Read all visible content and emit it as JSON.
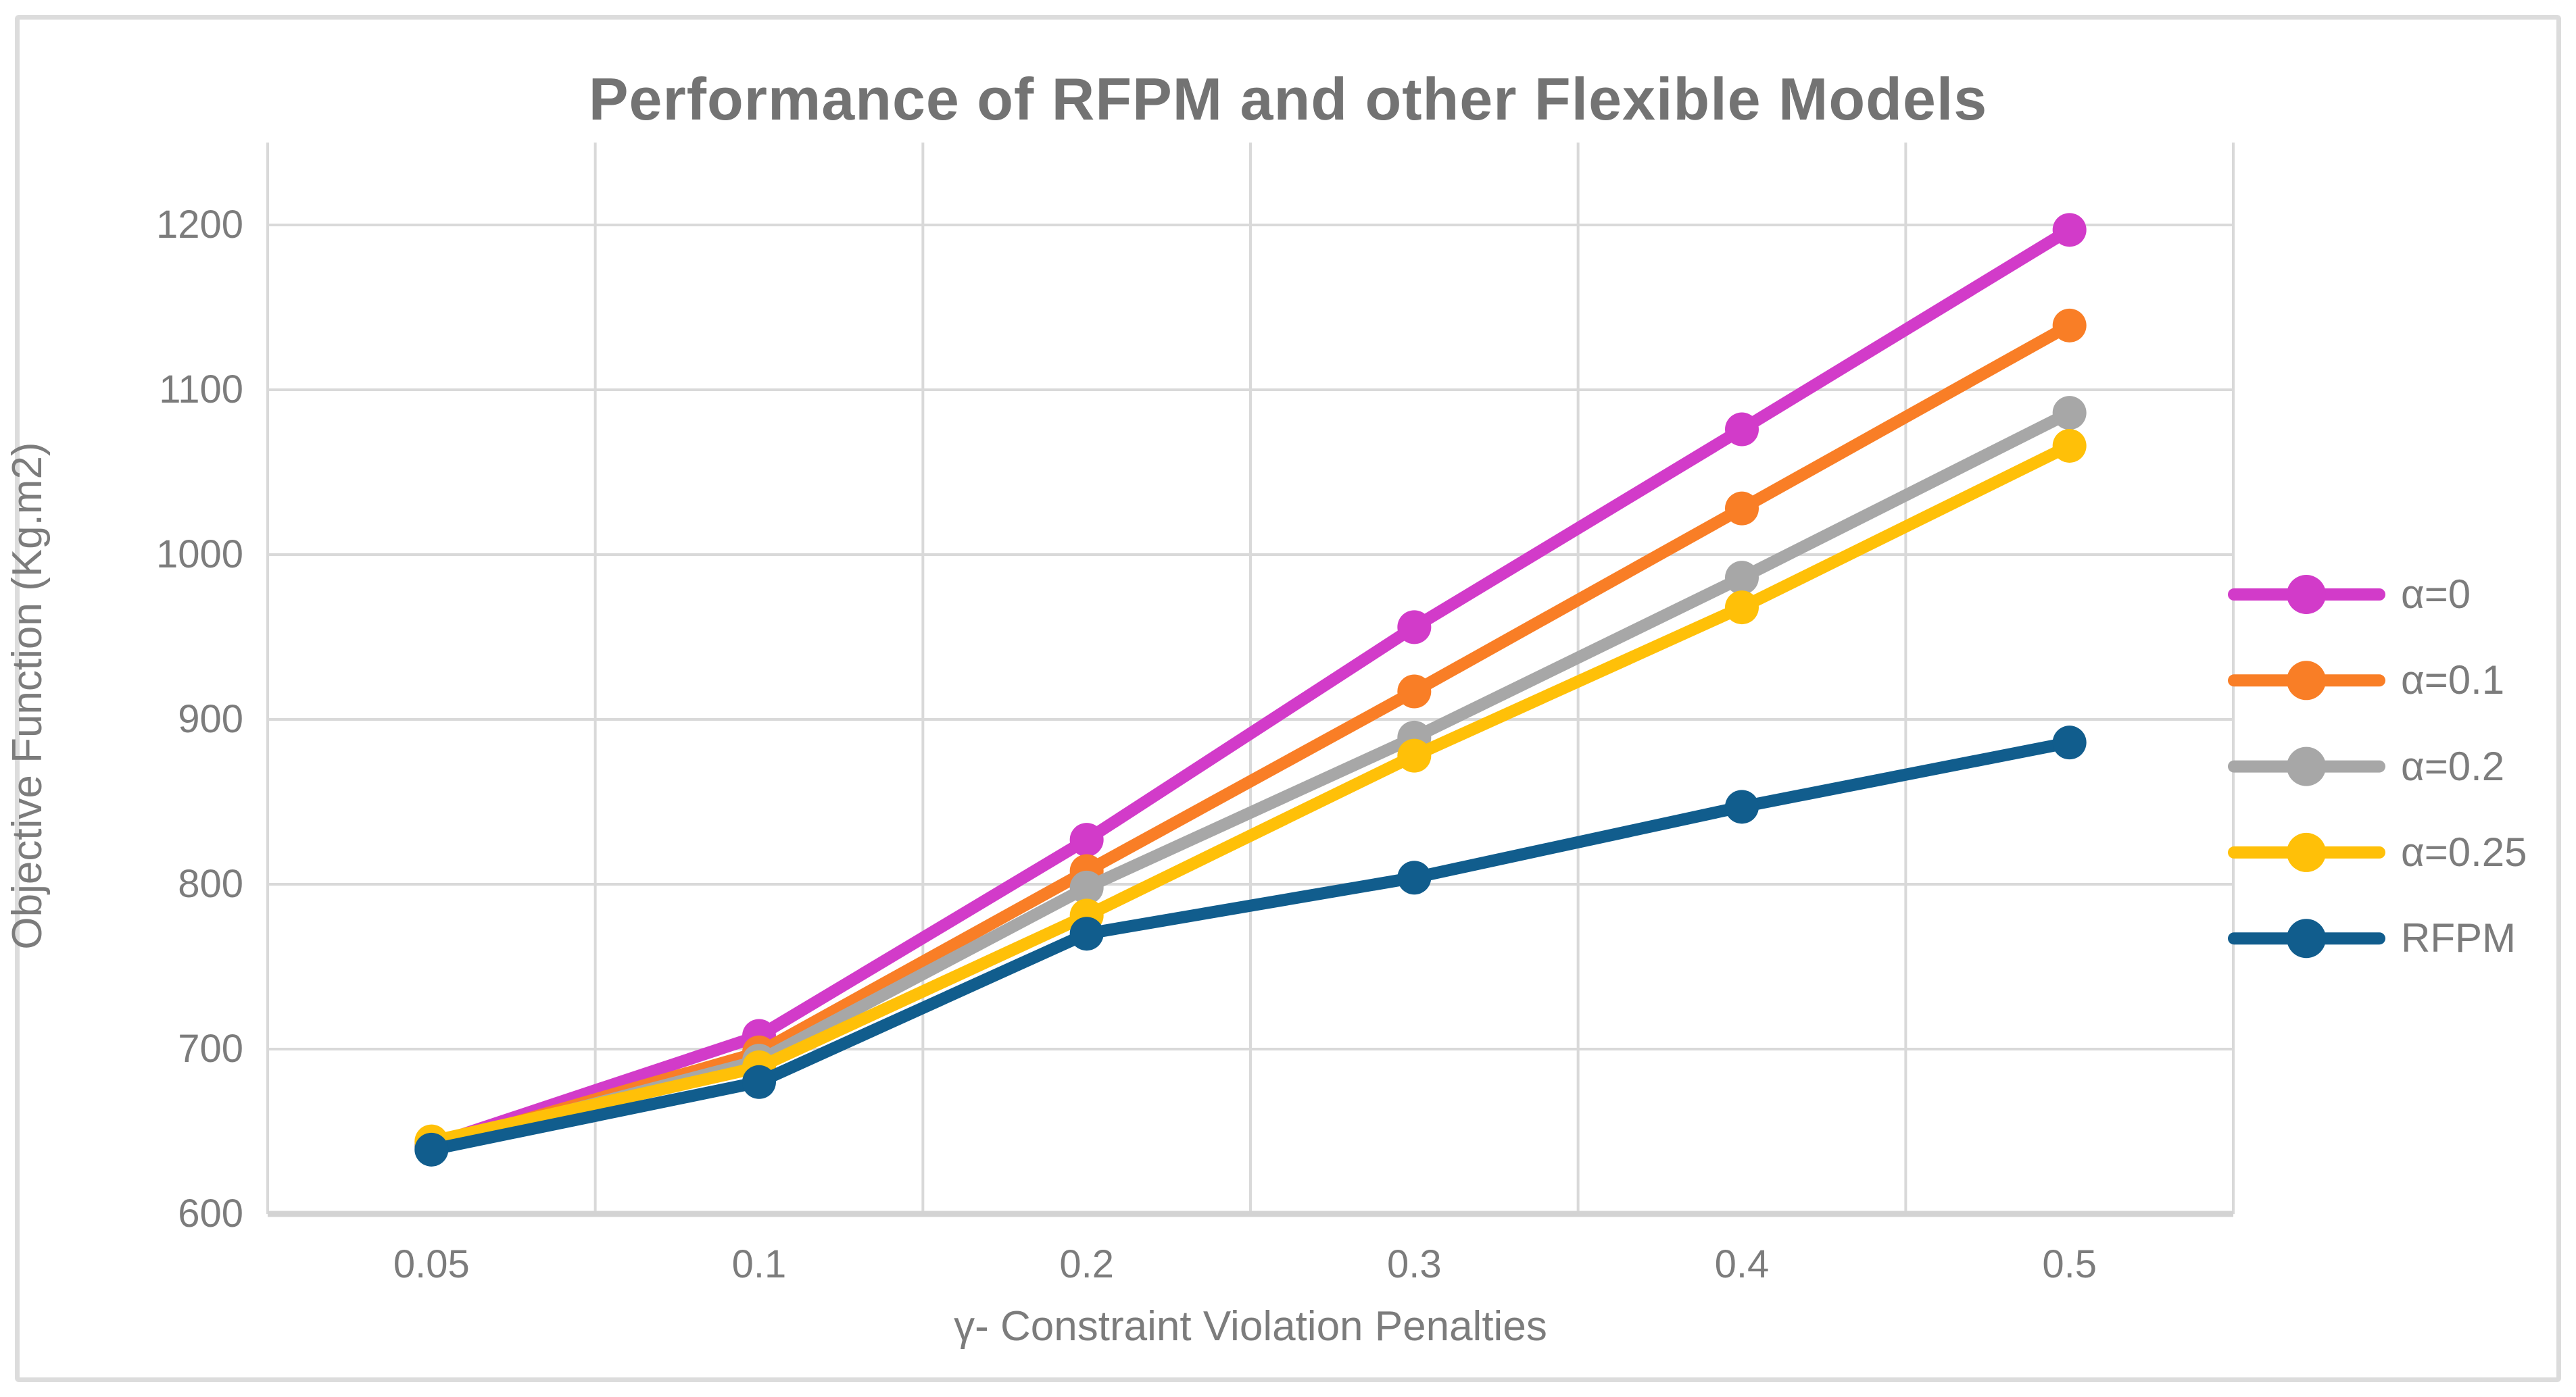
{
  "chart_data": {
    "type": "line",
    "title": "Performance of RFPM and other Flexible Models",
    "xlabel": "γ- Constraint Violation Penalties",
    "ylabel": "Objective Function (Kg.m2)",
    "categories": [
      "0.05",
      "0.1",
      "0.2",
      "0.3",
      "0.4",
      "0.5"
    ],
    "y_ticks": [
      600,
      700,
      800,
      900,
      1000,
      1100,
      1200
    ],
    "ylim": [
      600,
      1250
    ],
    "grid": true,
    "legend_position": "right",
    "series": [
      {
        "name": "α=0",
        "color": "#D23BC9",
        "values": [
          642,
          708,
          827,
          956,
          1076,
          1197
        ]
      },
      {
        "name": "α=0.1",
        "color": "#F97E26",
        "values": [
          641,
          698,
          808,
          917,
          1028,
          1139
        ]
      },
      {
        "name": "α=0.2",
        "color": "#A7A7A7",
        "values": [
          641,
          693,
          798,
          889,
          986,
          1086
        ]
      },
      {
        "name": "α=0.25",
        "color": "#FFC008",
        "values": [
          644,
          689,
          781,
          878,
          968,
          1066
        ]
      },
      {
        "name": "RFPM",
        "color": "#115D8D",
        "values": [
          639,
          680,
          770,
          804,
          847,
          886
        ]
      }
    ]
  },
  "styles": {
    "grid_color": "#D9D9D9",
    "axis_line_color": "#D3D3D3",
    "text_color": "#7C7C7C",
    "title_color": "#737373",
    "border_color": "#DCDCDC",
    "background": "#FFFFFF"
  }
}
